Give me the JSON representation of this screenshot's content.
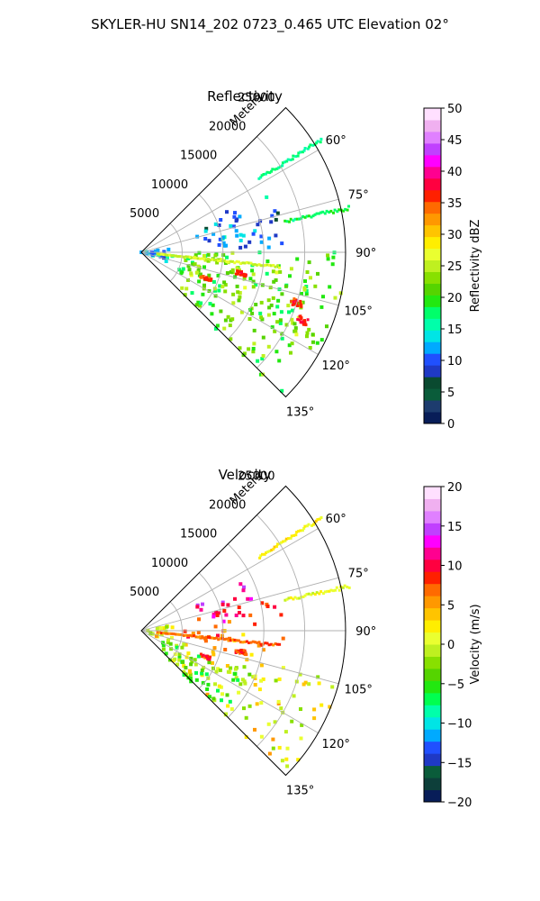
{
  "figure": {
    "title": "SKYLER-HU  SN14_202  0723_0.465 UTC Elevation 02°"
  },
  "chart_data": [
    {
      "type": "heatmap",
      "projection": "polar-sector",
      "title": "Reflectivity",
      "radial_label": "Meters",
      "radial_range": [
        0,
        25000
      ],
      "radial_ticks": [
        "5000",
        "10000",
        "15000",
        "20000",
        "25000"
      ],
      "radial_tick_values": [
        5000,
        10000,
        15000,
        20000,
        25000
      ],
      "azimuth_range_deg": [
        45,
        135
      ],
      "azimuth_ticks": [
        "60°",
        "75°",
        "90°",
        "105°",
        "120°",
        "135°"
      ],
      "azimuth_tick_values": [
        60,
        75,
        90,
        105,
        120,
        135
      ],
      "grid": true,
      "colorbar": {
        "label": "Reflectivity dBZ",
        "range": [
          0,
          50
        ],
        "ticks": [
          "0",
          "5",
          "10",
          "15",
          "20",
          "25",
          "30",
          "35",
          "40",
          "45",
          "50"
        ],
        "tick_values": [
          0,
          5,
          10,
          15,
          20,
          25,
          30,
          35,
          40,
          45,
          50
        ]
      },
      "echo_regions": [
        {
          "az": [
            64,
            88
          ],
          "r": [
            7000,
            18000
          ],
          "value": 11
        },
        {
          "az": [
            90,
            136
          ],
          "r": [
            5000,
            25000
          ],
          "value": 21
        },
        {
          "az": [
            95,
            118
          ],
          "r": [
            6000,
            22000
          ],
          "value": 23
        },
        {
          "az": [
            80,
            110
          ],
          "r": [
            0,
            4000
          ],
          "value": 13
        }
      ],
      "echo_lines": [
        {
          "az": 96,
          "r": [
            2000,
            17000
          ],
          "value": 26
        },
        {
          "az": 58,
          "r": [
            17000,
            26000
          ],
          "value": 17
        },
        {
          "az": 78,
          "r": [
            18000,
            26000
          ],
          "value": 18
        }
      ],
      "echo_hotspots": [
        {
          "az": 102,
          "r": 12500,
          "value": 36
        },
        {
          "az": 108,
          "r": 20000,
          "value": 36
        },
        {
          "az": 113,
          "r": 21500,
          "value": 37
        },
        {
          "az": 112,
          "r": 8500,
          "value": 35
        }
      ],
      "colormap": "#081d58,#1d3c6e,#0a5c3a,#0a4a30,#1f39c5,#2050ff,#00aaff,#00e5e5,#00ffaa,#00ff6a,#22e810,#55d400,#88e000,#bff020,#eaff30,#ffee00,#ffc400,#ff9800,#ff6a00,#ff2000,#ff0040,#ff0090,#ff00ff,#c040ff,#e080ff,#f0b0f0,#ffe0ff"
    },
    {
      "type": "heatmap",
      "projection": "polar-sector",
      "title": "Velocity",
      "radial_label": "Meters",
      "radial_range": [
        0,
        25000
      ],
      "radial_ticks": [
        "5000",
        "10000",
        "15000",
        "20000",
        "25000"
      ],
      "radial_tick_values": [
        5000,
        10000,
        15000,
        20000,
        25000
      ],
      "azimuth_range_deg": [
        45,
        135
      ],
      "azimuth_ticks": [
        "60°",
        "75°",
        "90°",
        "105°",
        "120°",
        "135°"
      ],
      "azimuth_tick_values": [
        60,
        75,
        90,
        105,
        120,
        135
      ],
      "grid": true,
      "colorbar": {
        "label": "Velocity (m/s)",
        "range": [
          -20,
          20
        ],
        "ticks": [
          "−20",
          "−15",
          "−10",
          "−5",
          "0",
          "5",
          "10",
          "15",
          "20"
        ],
        "tick_values": [
          -20,
          -15,
          -10,
          -5,
          0,
          5,
          10,
          15,
          20
        ]
      },
      "echo_regions": [
        {
          "az": [
            64,
            76
          ],
          "r": [
            7000,
            14000
          ],
          "value": 13
        },
        {
          "az": [
            76,
            88
          ],
          "r": [
            7000,
            18000
          ],
          "value": 9
        },
        {
          "az": [
            90,
            104
          ],
          "r": [
            5000,
            18000
          ],
          "value": 6
        },
        {
          "az": [
            104,
            136
          ],
          "r": [
            5000,
            25000
          ],
          "value": 1
        },
        {
          "az": [
            112,
            136
          ],
          "r": [
            3000,
            15000
          ],
          "value": -4
        },
        {
          "az": [
            80,
            110
          ],
          "r": [
            0,
            4000
          ],
          "value": 1
        }
      ],
      "echo_lines": [
        {
          "az": 96,
          "r": [
            2000,
            17000
          ],
          "value": 7
        },
        {
          "az": 58,
          "r": [
            17000,
            26000
          ],
          "value": 2
        },
        {
          "az": 78,
          "r": [
            18000,
            26000
          ],
          "value": 1
        }
      ],
      "echo_hotspots": [
        {
          "az": 102,
          "r": 12500,
          "value": 8
        },
        {
          "az": 112,
          "r": 8500,
          "value": 9
        }
      ],
      "colormap": "#081d58,#0d3f3a,#0a5c3a,#1f39c5,#2050ff,#00aaff,#00e5e5,#00ffaa,#00ff50,#22e810,#55d400,#88e000,#bff020,#eaff30,#ffee00,#ffc400,#ff9800,#ff6a00,#ff2000,#ff0040,#ff0090,#ff00ff,#c040ff,#e080ff,#f0b0f0,#ffe0ff"
    }
  ]
}
